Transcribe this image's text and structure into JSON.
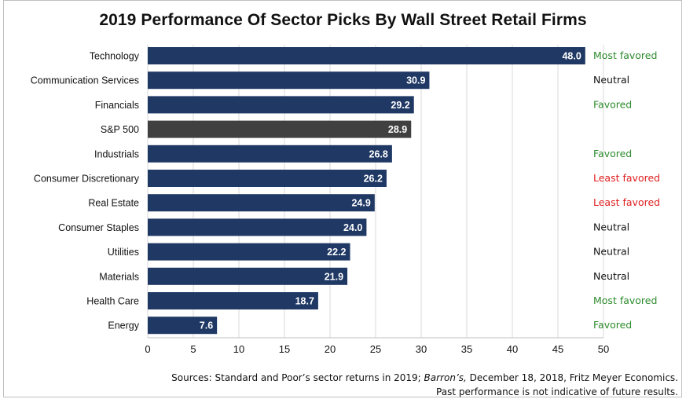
{
  "chart_data": {
    "type": "bar",
    "orientation": "horizontal",
    "title": "2019 Performance Of Sector Picks By Wall Street Retail Firms",
    "categories": [
      "Technology",
      "Communication Services",
      "Financials",
      "S&P 500",
      "Industrials",
      "Consumer Discretionary",
      "Real Estate",
      "Consumer Staples",
      "Utilities",
      "Materials",
      "Health Care",
      "Energy"
    ],
    "values": [
      48.0,
      30.9,
      29.2,
      28.9,
      26.8,
      26.2,
      24.9,
      24.0,
      22.2,
      21.9,
      18.7,
      7.6
    ],
    "value_labels": [
      "48.0",
      "30.9",
      "29.2",
      "28.9",
      "26.8",
      "26.2",
      "24.9",
      "24.0",
      "22.2",
      "21.9",
      "18.7",
      "7.6"
    ],
    "ratings": [
      "Most favored",
      "Neutral",
      "Favored",
      "",
      "Favored",
      "Least favored",
      "Least favored",
      "Neutral",
      "Neutral",
      "Neutral",
      "Most favored",
      "Favored"
    ],
    "highlight_category": "S&P 500",
    "xlim": [
      0,
      50
    ],
    "xticks": [
      0,
      5,
      10,
      15,
      20,
      25,
      30,
      35,
      40,
      45,
      50
    ],
    "grid": true,
    "colors": {
      "bar": "#1f3864",
      "highlight_bar": "#404040",
      "Most favored": "#2e8b2e",
      "Favored": "#2e8b2e",
      "Neutral": "#111111",
      "Least favored": "#e02020"
    }
  },
  "sources": {
    "line1_prefix": "Sources: Standard and Poor’s sector returns in 2019; ",
    "line1_italic": "Barron’s,",
    "line1_suffix": " December 18, 2018, Fritz Meyer Economics.",
    "line2": "Past performance is not indicative of future results."
  }
}
